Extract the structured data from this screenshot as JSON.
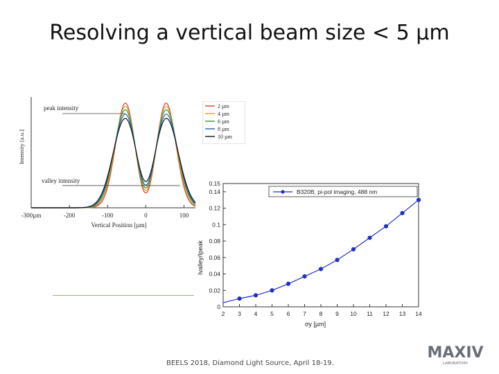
{
  "slide": {
    "title": "Resolving a vertical beam size < 5 µm",
    "footer": "BEELS 2018, Diamond Light Source, April 18-19.",
    "logo_text": "MAX IV",
    "logo_subtext": "LABORATORY"
  },
  "colors": {
    "blue_series": "#1f2fc4",
    "green_rule": "#9bb56a",
    "profiles": [
      "#e23b2a",
      "#e0a020",
      "#2a9a3a",
      "#1f5fb0",
      "#111111"
    ]
  },
  "chart_data": [
    {
      "type": "line",
      "title": "",
      "xlabel": "Vertical Position [µm]",
      "ylabel": "Intensity [a.u.]",
      "xlim": [
        -300,
        130
      ],
      "x_ticks": [
        "-300µm",
        "-200",
        "-100",
        "0",
        "100"
      ],
      "annotations": [
        "peak intensity",
        "valley intensity"
      ],
      "legend_position": "top-right",
      "grid": false,
      "series": [
        {
          "name": "2 µm",
          "peak": 1.0,
          "valley": 0.14
        },
        {
          "name": "4 µm",
          "peak": 0.97,
          "valley": 0.17
        },
        {
          "name": "6 µm",
          "peak": 0.94,
          "valley": 0.2
        },
        {
          "name": "8 µm",
          "peak": 0.9,
          "valley": 0.24
        },
        {
          "name": "10 µm",
          "peak": 0.86,
          "valley": 0.29
        }
      ]
    },
    {
      "type": "line",
      "title": "",
      "xlabel": "σy [µm]",
      "ylabel": "Ivalley/Ipeak",
      "xlim": [
        2,
        14
      ],
      "ylim": [
        0,
        0.15
      ],
      "x_ticks": [
        "2",
        "3",
        "4",
        "5",
        "6",
        "7",
        "8",
        "9",
        "10",
        "11",
        "12",
        "13",
        "14"
      ],
      "y_ticks": [
        "0",
        "0.02",
        "0.04",
        "0.06",
        "0.08",
        "0.1",
        "0.12",
        "0.14",
        "0.15"
      ],
      "grid": false,
      "legend_position": "top-right",
      "series": [
        {
          "name": "B320B, pi-pol imaging, 488 nm",
          "x": [
            3,
            4,
            5,
            6,
            7,
            8,
            9,
            10,
            11,
            12,
            13,
            14
          ],
          "y": [
            0.01,
            0.014,
            0.02,
            0.028,
            0.037,
            0.046,
            0.057,
            0.07,
            0.084,
            0.098,
            0.114,
            0.13
          ]
        }
      ]
    }
  ]
}
